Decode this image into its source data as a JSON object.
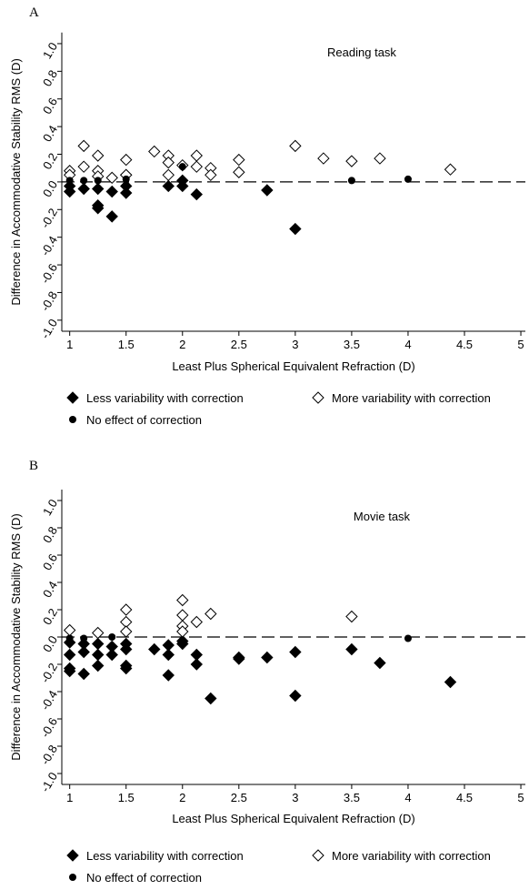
{
  "chart_data": [
    {
      "type": "scatter",
      "panel_label": "A",
      "annotation": "Reading task",
      "x_label": "Least Plus Spherical Equivalent Refraction (D)",
      "y_label": "Difference in Accommodative Stability RMS (D)",
      "xlim": [
        0.93,
        5.04
      ],
      "ylim": [
        -1.08,
        1.08
      ],
      "xticks": [
        1,
        1.5,
        2,
        2.5,
        3,
        3.5,
        4,
        4.5,
        5
      ],
      "yticks": [
        {
          "value": 1,
          "label": "1.0"
        },
        0.8,
        0.6,
        0.4,
        0.2,
        {
          "value": 0,
          "label": "0.0"
        },
        -0.2,
        -0.4,
        -0.6,
        -0.8,
        {
          "value": -1,
          "label": "-1.0"
        }
      ],
      "reference_line": 0,
      "series": [
        {
          "name": "Less variability with correction",
          "marker": "filled-diamond",
          "color": "#000000",
          "x": [
            1,
            1,
            1.125,
            1.25,
            1.25,
            1.25,
            1.375,
            1.375,
            1.5,
            1.5,
            1.5,
            1.875,
            2,
            2,
            2.125,
            2.75,
            3
          ],
          "values": [
            -0.03,
            -0.07,
            -0.05,
            -0.05,
            -0.17,
            -0.19,
            -0.07,
            -0.25,
            -0.03,
            -0.08,
            0.05,
            -0.03,
            0.01,
            -0.03,
            -0.09,
            -0.06,
            -0.34
          ]
        },
        {
          "name": "More variability with correction",
          "marker": "open-diamond",
          "color": "#000000",
          "x": [
            1,
            1,
            1.125,
            1.125,
            1.25,
            1.25,
            1.25,
            1.375,
            1.5,
            1.5,
            1.75,
            1.875,
            1.875,
            1.875,
            2,
            2.125,
            2.125,
            2.25,
            2.25,
            2.5,
            2.5,
            3,
            3.25,
            3.5,
            3.75,
            4.375
          ],
          "values": [
            0.08,
            0.05,
            0.11,
            0.26,
            0.08,
            0.19,
            0.04,
            0.03,
            0.16,
            0.05,
            0.22,
            0.19,
            0.14,
            0.05,
            0.12,
            0.19,
            0.11,
            0.1,
            0.05,
            0.16,
            0.07,
            0.26,
            0.17,
            0.15,
            0.17,
            0.09
          ]
        },
        {
          "name": "No effect of correction",
          "marker": "circle",
          "color": "#000000",
          "x": [
            1,
            1.125,
            1.25,
            1.5,
            2,
            3.5,
            4
          ],
          "values": [
            0.01,
            0.01,
            0.01,
            0.02,
            0.11,
            0.01,
            0.02
          ]
        }
      ]
    },
    {
      "type": "scatter",
      "panel_label": "B",
      "annotation": "Movie task",
      "x_label": "Least Plus Spherical Equivalent Refraction (D)",
      "y_label": "Difference in Accommodative Stability RMS (D)",
      "xlim": [
        0.93,
        5.04
      ],
      "ylim": [
        -1.08,
        1.08
      ],
      "xticks": [
        1,
        1.5,
        2,
        2.5,
        3,
        3.5,
        4,
        4.5,
        5
      ],
      "yticks": [
        {
          "value": 1,
          "label": "1.0"
        },
        0.8,
        0.6,
        0.4,
        0.2,
        {
          "value": 0,
          "label": "0.0"
        },
        -0.2,
        -0.4,
        -0.6,
        -0.8,
        {
          "value": -1,
          "label": "-1.0"
        }
      ],
      "reference_line": 0,
      "series": [
        {
          "name": "Less variability with correction",
          "marker": "filled-diamond",
          "color": "#000000",
          "x": [
            1,
            1,
            1,
            1,
            1.125,
            1.125,
            1.125,
            1.25,
            1.25,
            1.25,
            1.375,
            1.375,
            1.5,
            1.5,
            1.5,
            1.5,
            1.75,
            1.875,
            1.875,
            1.875,
            2,
            2,
            2.125,
            2.125,
            2.25,
            2.5,
            2.5,
            2.75,
            3,
            3,
            3.5,
            3.75,
            4.375
          ],
          "values": [
            -0.04,
            -0.13,
            -0.23,
            -0.25,
            -0.05,
            -0.11,
            -0.27,
            -0.05,
            -0.13,
            -0.21,
            -0.07,
            -0.13,
            -0.05,
            -0.09,
            -0.21,
            -0.23,
            -0.09,
            -0.06,
            -0.13,
            -0.28,
            -0.05,
            -0.03,
            -0.13,
            -0.2,
            -0.45,
            -0.15,
            -0.16,
            -0.15,
            -0.11,
            -0.43,
            -0.09,
            -0.19,
            -0.33
          ]
        },
        {
          "name": "More variability with correction",
          "marker": "open-diamond",
          "color": "#000000",
          "x": [
            1,
            1.25,
            1.5,
            1.5,
            1.5,
            2,
            2,
            2,
            2,
            2.125,
            2.25,
            3.5
          ],
          "values": [
            0.05,
            0.03,
            0.2,
            0.11,
            0.04,
            0.27,
            0.16,
            0.08,
            0.04,
            0.11,
            0.17,
            0.15
          ]
        },
        {
          "name": "No effect of correction",
          "marker": "circle",
          "color": "#000000",
          "x": [
            1,
            1.125,
            1.375,
            4
          ],
          "values": [
            -0.01,
            -0.01,
            0,
            -0.01
          ]
        }
      ]
    }
  ]
}
